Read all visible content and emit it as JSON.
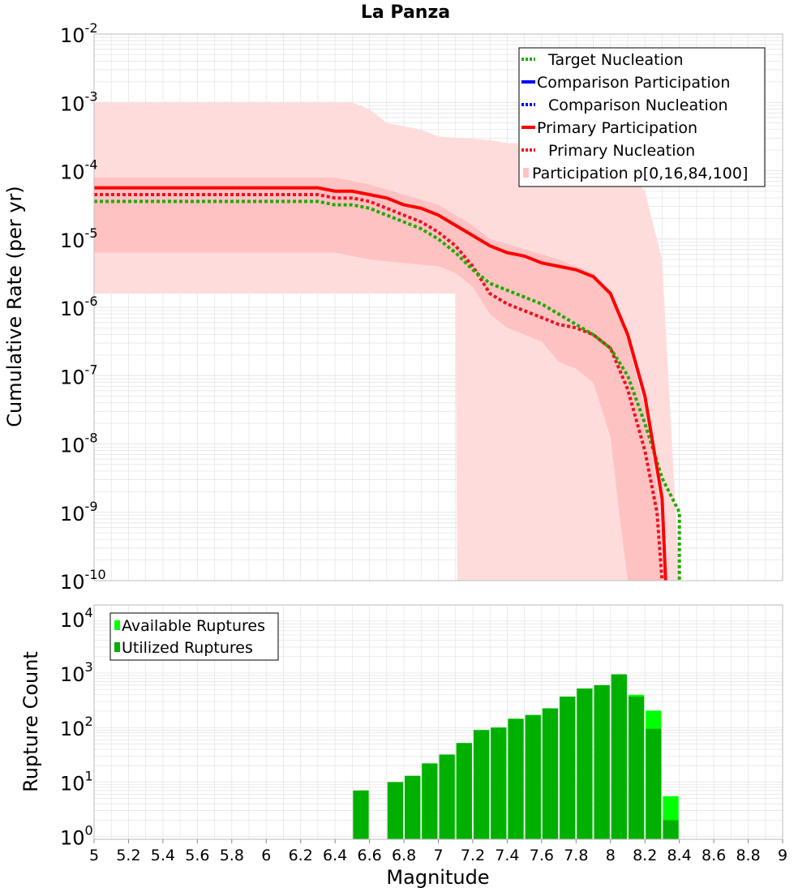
{
  "colors": {
    "target_green": "#22aa00",
    "comparison_blue": "#0000ff",
    "primary_red": "#ff0000",
    "primary_nucl_red": "#ee1122",
    "band_outer": "#ffdcdc",
    "band_inner": "#ffc2c2",
    "available_green": "#00ff00",
    "utilized_green": "#00b000",
    "grid": "#e6e6e6",
    "frame": "#bbbbbb"
  },
  "chart_data": [
    {
      "type": "line",
      "title": "La Panza",
      "xlabel": "Magnitude",
      "ylabel": "Cumulative Rate (per yr)",
      "xlim": [
        5,
        9
      ],
      "ylim_exp": [
        -10,
        -2
      ],
      "y_scale": "log",
      "ytick_base": "10",
      "ytick_exponents": [
        "-2",
        "-3",
        "-4",
        "-5",
        "-6",
        "-7",
        "-8",
        "-9",
        "-10"
      ],
      "legend_position": "top-right",
      "legend": [
        {
          "label": "Target Nucleation",
          "style": "dotted",
          "color": "#22aa00"
        },
        {
          "label": "Comparison Participation",
          "style": "solid",
          "color": "#0000ff"
        },
        {
          "label": "Comparison Nucleation",
          "style": "dotted",
          "color": "#0000ff"
        },
        {
          "label": "Primary Participation",
          "style": "solid",
          "color": "#ff0000"
        },
        {
          "label": "Primary Nucleation",
          "style": "dotted",
          "color": "#ee1122"
        },
        {
          "label": "Participation p[0,16,84,100]",
          "style": "box",
          "color": "#ffc2c2"
        }
      ],
      "bands": {
        "outer_upper": [
          [
            5.0,
            -3.0
          ],
          [
            6.5,
            -3.0
          ],
          [
            6.6,
            -3.1
          ],
          [
            6.7,
            -3.3
          ],
          [
            6.8,
            -3.35
          ],
          [
            6.9,
            -3.4
          ],
          [
            7.0,
            -3.5
          ],
          [
            7.3,
            -3.55
          ],
          [
            7.4,
            -3.6
          ],
          [
            7.8,
            -3.6
          ],
          [
            8.0,
            -3.7
          ],
          [
            8.1,
            -4.0
          ],
          [
            8.2,
            -4.3
          ],
          [
            8.3,
            -5.3
          ],
          [
            8.4,
            -10.0
          ]
        ],
        "outer_lower": [
          [
            5.0,
            -5.8
          ],
          [
            7.1,
            -5.8
          ],
          [
            7.11,
            -10.0
          ],
          [
            8.4,
            -10.0
          ]
        ],
        "inner_upper": [
          [
            5.0,
            -4.1
          ],
          [
            6.4,
            -4.1
          ],
          [
            6.6,
            -4.2
          ],
          [
            6.8,
            -4.35
          ],
          [
            7.0,
            -4.5
          ],
          [
            7.1,
            -4.65
          ],
          [
            7.2,
            -4.8
          ],
          [
            7.3,
            -5.0
          ],
          [
            7.5,
            -5.15
          ],
          [
            7.7,
            -5.3
          ],
          [
            7.8,
            -5.4
          ],
          [
            7.9,
            -5.5
          ],
          [
            8.0,
            -5.8
          ],
          [
            8.1,
            -6.5
          ],
          [
            8.2,
            -7.5
          ],
          [
            8.28,
            -8.8
          ],
          [
            8.3,
            -10.0
          ]
        ],
        "inner_lower": [
          [
            5.0,
            -5.2
          ],
          [
            6.4,
            -5.2
          ],
          [
            6.6,
            -5.3
          ],
          [
            6.8,
            -5.35
          ],
          [
            7.0,
            -5.4
          ],
          [
            7.1,
            -5.5
          ],
          [
            7.2,
            -5.7
          ],
          [
            7.3,
            -6.1
          ],
          [
            7.4,
            -6.3
          ],
          [
            7.5,
            -6.4
          ],
          [
            7.6,
            -6.5
          ],
          [
            7.7,
            -6.8
          ],
          [
            7.8,
            -6.9
          ],
          [
            7.9,
            -7.1
          ],
          [
            8.0,
            -7.9
          ],
          [
            8.05,
            -9.0
          ],
          [
            8.1,
            -10.0
          ]
        ]
      },
      "series": [
        {
          "name": "Target Nucleation",
          "points": [
            [
              5.0,
              -4.45
            ],
            [
              6.3,
              -4.45
            ],
            [
              6.4,
              -4.5
            ],
            [
              6.5,
              -4.5
            ],
            [
              6.6,
              -4.55
            ],
            [
              6.7,
              -4.65
            ],
            [
              6.8,
              -4.75
            ],
            [
              6.9,
              -4.85
            ],
            [
              7.0,
              -5.0
            ],
            [
              7.1,
              -5.2
            ],
            [
              7.2,
              -5.45
            ],
            [
              7.3,
              -5.65
            ],
            [
              7.4,
              -5.75
            ],
            [
              7.5,
              -5.85
            ],
            [
              7.6,
              -5.95
            ],
            [
              7.7,
              -6.1
            ],
            [
              7.8,
              -6.25
            ],
            [
              7.9,
              -6.4
            ],
            [
              8.0,
              -6.6
            ],
            [
              8.1,
              -7.0
            ],
            [
              8.2,
              -7.7
            ],
            [
              8.3,
              -8.5
            ],
            [
              8.4,
              -9.0
            ],
            [
              8.4,
              -10.0
            ]
          ]
        },
        {
          "name": "Primary Participation",
          "points": [
            [
              5.0,
              -4.25
            ],
            [
              6.3,
              -4.25
            ],
            [
              6.4,
              -4.3
            ],
            [
              6.5,
              -4.3
            ],
            [
              6.6,
              -4.35
            ],
            [
              6.7,
              -4.4
            ],
            [
              6.8,
              -4.5
            ],
            [
              6.9,
              -4.55
            ],
            [
              7.0,
              -4.65
            ],
            [
              7.1,
              -4.8
            ],
            [
              7.2,
              -4.95
            ],
            [
              7.3,
              -5.1
            ],
            [
              7.4,
              -5.2
            ],
            [
              7.5,
              -5.25
            ],
            [
              7.6,
              -5.35
            ],
            [
              7.7,
              -5.4
            ],
            [
              7.8,
              -5.45
            ],
            [
              7.9,
              -5.55
            ],
            [
              8.0,
              -5.8
            ],
            [
              8.1,
              -6.4
            ],
            [
              8.2,
              -7.3
            ],
            [
              8.3,
              -8.8
            ],
            [
              8.32,
              -10.0
            ]
          ]
        },
        {
          "name": "Primary Nucleation",
          "points": [
            [
              5.0,
              -4.35
            ],
            [
              6.3,
              -4.35
            ],
            [
              6.4,
              -4.4
            ],
            [
              6.5,
              -4.4
            ],
            [
              6.6,
              -4.45
            ],
            [
              6.7,
              -4.55
            ],
            [
              6.8,
              -4.65
            ],
            [
              6.9,
              -4.75
            ],
            [
              7.0,
              -4.9
            ],
            [
              7.1,
              -5.1
            ],
            [
              7.2,
              -5.4
            ],
            [
              7.3,
              -5.8
            ],
            [
              7.4,
              -5.95
            ],
            [
              7.5,
              -6.05
            ],
            [
              7.6,
              -6.15
            ],
            [
              7.7,
              -6.25
            ],
            [
              7.8,
              -6.3
            ],
            [
              7.9,
              -6.4
            ],
            [
              8.0,
              -6.6
            ],
            [
              8.1,
              -7.2
            ],
            [
              8.2,
              -8.1
            ],
            [
              8.27,
              -9.0
            ],
            [
              8.3,
              -10.0
            ]
          ]
        }
      ]
    },
    {
      "type": "bar",
      "xlabel": "Magnitude",
      "ylabel": "Rupture Count",
      "xlim": [
        5,
        9
      ],
      "y_scale": "log",
      "ytick_base": "10",
      "ytick_exponents": [
        "4",
        "3",
        "2",
        "1",
        "0"
      ],
      "xtick_labels": [
        "5",
        "5.2",
        "5.4",
        "5.6",
        "5.8",
        "6",
        "6.2",
        "6.4",
        "6.6",
        "6.8",
        "7",
        "7.2",
        "7.4",
        "7.6",
        "7.8",
        "8",
        "8.2",
        "8.4",
        "8.6",
        "8.8",
        "9"
      ],
      "legend_position": "top-left",
      "legend": [
        {
          "label": "Available Ruptures",
          "color": "#00ff00"
        },
        {
          "label": "Utilized Ruptures",
          "color": "#00b000"
        }
      ],
      "bin_width": 0.1,
      "bins": [
        {
          "x": 6.55,
          "available": 7,
          "utilized": 7
        },
        {
          "x": 6.75,
          "available": 10,
          "utilized": 10
        },
        {
          "x": 6.85,
          "available": 13,
          "utilized": 13
        },
        {
          "x": 6.95,
          "available": 22,
          "utilized": 22
        },
        {
          "x": 7.05,
          "available": 32,
          "utilized": 32
        },
        {
          "x": 7.15,
          "available": 52,
          "utilized": 52
        },
        {
          "x": 7.25,
          "available": 90,
          "utilized": 90
        },
        {
          "x": 7.35,
          "available": 100,
          "utilized": 100
        },
        {
          "x": 7.45,
          "available": 145,
          "utilized": 145
        },
        {
          "x": 7.55,
          "available": 170,
          "utilized": 170
        },
        {
          "x": 7.65,
          "available": 225,
          "utilized": 225
        },
        {
          "x": 7.75,
          "available": 370,
          "utilized": 370
        },
        {
          "x": 7.85,
          "available": 520,
          "utilized": 520
        },
        {
          "x": 7.95,
          "available": 600,
          "utilized": 600
        },
        {
          "x": 8.05,
          "available": 950,
          "utilized": 950
        },
        {
          "x": 8.15,
          "available": 400,
          "utilized": 370
        },
        {
          "x": 8.25,
          "available": 205,
          "utilized": 95
        },
        {
          "x": 8.35,
          "available": 5.5,
          "utilized": 2
        }
      ]
    }
  ]
}
